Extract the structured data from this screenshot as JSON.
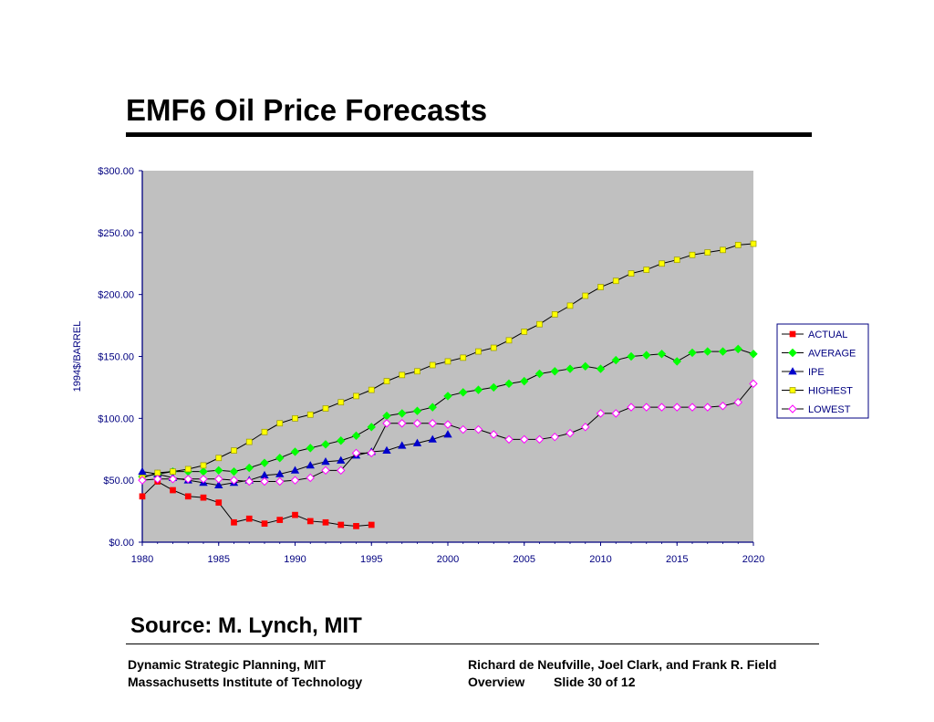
{
  "slide": {
    "title": "EMF6 Oil Price Forecasts",
    "source": "Source: M. Lynch, MIT",
    "footer_left_1": "Dynamic Strategic Planning, MIT",
    "footer_left_2": "Massachusetts Institute of Technology",
    "footer_right_1": "Richard de Neufville, Joel Clark, and Frank  R. Field",
    "footer_right_2": "Overview",
    "footer_slide": "Slide 30 of 12"
  },
  "colors": {
    "plot_bg": "#c0c0c0",
    "axis": "#000080",
    "actual": "#ff0000",
    "average": "#00ff00",
    "ipe": "#0000cc",
    "highest": "#ffff00",
    "lowest": "#ff00ff"
  },
  "chart_data": {
    "type": "line",
    "title": "",
    "xlabel": "",
    "ylabel": "1994$/BARREL",
    "xlim": [
      1980,
      2020
    ],
    "ylim": [
      0,
      300
    ],
    "x_ticks": [
      1980,
      1985,
      1990,
      1995,
      2000,
      2005,
      2010,
      2015,
      2020
    ],
    "y_ticks": [
      0,
      50,
      100,
      150,
      200,
      250,
      300
    ],
    "y_tick_labels": [
      "$0.00",
      "$50.00",
      "$100.00",
      "$150.00",
      "$200.00",
      "$250.00",
      "$300.00"
    ],
    "grid": false,
    "legend": "right",
    "series": [
      {
        "name": "ACTUAL",
        "color": "#ff0000",
        "marker": "square",
        "x": [
          1980,
          1981,
          1982,
          1983,
          1984,
          1985,
          1986,
          1987,
          1988,
          1989,
          1990,
          1991,
          1992,
          1993,
          1994,
          1995
        ],
        "values": [
          37,
          49,
          42,
          37,
          36,
          32,
          16,
          19,
          15,
          18,
          22,
          17,
          16,
          14,
          13,
          14
        ]
      },
      {
        "name": "AVERAGE",
        "color": "#00ff00",
        "marker": "diamond",
        "x": [
          1980,
          1981,
          1982,
          1983,
          1984,
          1985,
          1986,
          1987,
          1988,
          1989,
          1990,
          1991,
          1992,
          1993,
          1994,
          1995,
          1996,
          1997,
          1998,
          1999,
          2000,
          2001,
          2002,
          2003,
          2004,
          2005,
          2006,
          2007,
          2008,
          2009,
          2010,
          2011,
          2012,
          2013,
          2014,
          2015,
          2016,
          2017,
          2018,
          2019,
          2020
        ],
        "values": [
          53,
          55,
          57,
          57,
          57,
          58,
          57,
          60,
          64,
          68,
          73,
          76,
          79,
          82,
          86,
          93,
          102,
          104,
          106,
          109,
          118,
          121,
          123,
          125,
          128,
          130,
          136,
          138,
          140,
          142,
          140,
          147,
          150,
          151,
          152,
          146,
          153,
          154,
          154,
          156,
          152
        ]
      },
      {
        "name": "IPE",
        "color": "#0000cc",
        "marker": "triangle",
        "x": [
          1980,
          1981,
          1982,
          1983,
          1984,
          1985,
          1986,
          1987,
          1988,
          1989,
          1990,
          1991,
          1992,
          1993,
          1994,
          1995,
          1996,
          1997,
          1998,
          1999,
          2000
        ],
        "values": [
          57,
          55,
          52,
          50,
          48,
          46,
          48,
          50,
          54,
          55,
          58,
          62,
          65,
          66,
          70,
          73,
          74,
          78,
          80,
          83,
          87
        ]
      },
      {
        "name": "HIGHEST",
        "color": "#ffff00",
        "marker": "square",
        "x": [
          1980,
          1981,
          1982,
          1983,
          1984,
          1985,
          1986,
          1987,
          1988,
          1989,
          1990,
          1991,
          1992,
          1993,
          1994,
          1995,
          1996,
          1997,
          1998,
          1999,
          2000,
          2001,
          2002,
          2003,
          2004,
          2005,
          2006,
          2007,
          2008,
          2009,
          2010,
          2011,
          2012,
          2013,
          2014,
          2015,
          2016,
          2017,
          2018,
          2019,
          2020
        ],
        "values": [
          52,
          56,
          57,
          59,
          62,
          68,
          74,
          81,
          89,
          96,
          100,
          103,
          108,
          113,
          118,
          123,
          130,
          135,
          138,
          143,
          146,
          149,
          154,
          157,
          163,
          170,
          176,
          184,
          191,
          199,
          206,
          211,
          217,
          220,
          225,
          228,
          232,
          234,
          236,
          240,
          241
        ]
      },
      {
        "name": "LOWEST",
        "color": "#ff00ff",
        "marker": "diamond",
        "x": [
          1980,
          1981,
          1982,
          1983,
          1984,
          1985,
          1986,
          1987,
          1988,
          1989,
          1990,
          1991,
          1992,
          1993,
          1994,
          1995,
          1996,
          1997,
          1998,
          1999,
          2000,
          2001,
          2002,
          2003,
          2004,
          2005,
          2006,
          2007,
          2008,
          2009,
          2010,
          2011,
          2012,
          2013,
          2014,
          2015,
          2016,
          2017,
          2018,
          2019,
          2020
        ],
        "values": [
          50,
          51,
          51,
          51,
          51,
          51,
          50,
          49,
          49,
          49,
          50,
          52,
          58,
          58,
          72,
          72,
          96,
          96,
          96,
          96,
          95,
          91,
          91,
          87,
          83,
          83,
          83,
          85,
          88,
          93,
          104,
          104,
          109,
          109,
          109,
          109,
          109,
          109,
          110,
          113,
          128
        ]
      }
    ]
  }
}
